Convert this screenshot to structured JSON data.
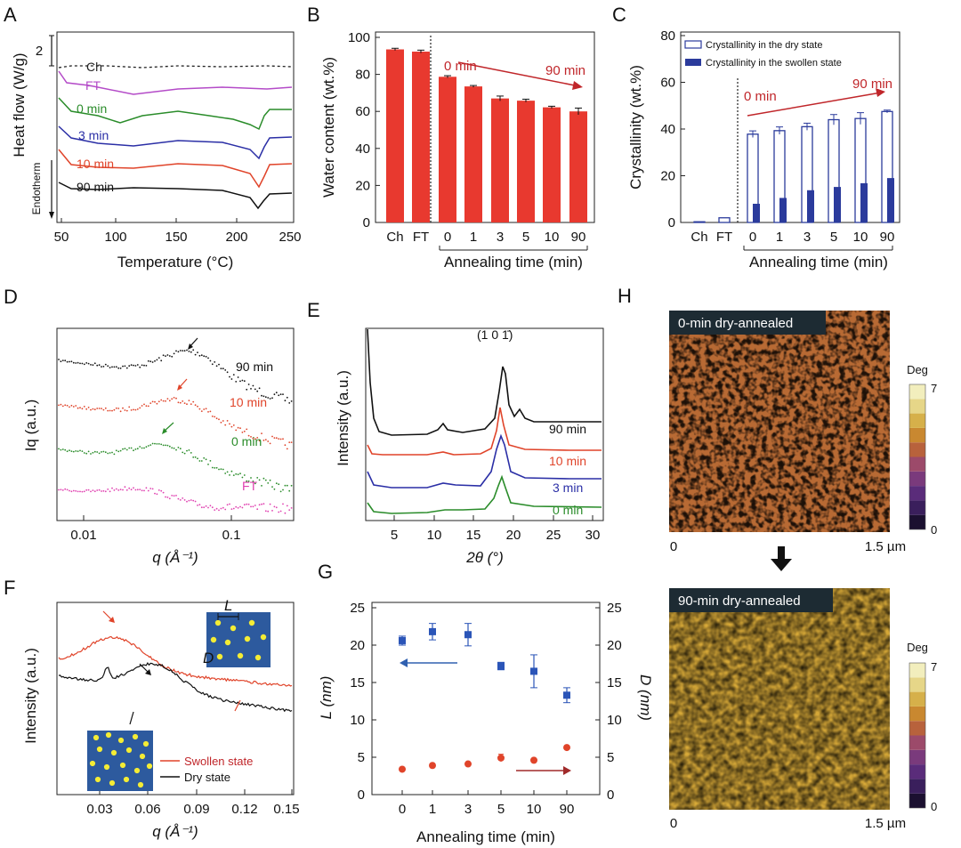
{
  "panels": {
    "A": "A",
    "B": "B",
    "C": "C",
    "D": "D",
    "E": "E",
    "F": "F",
    "G": "G",
    "H": "H"
  },
  "chart_data": [
    {
      "id": "A",
      "type": "line",
      "xlabel": "Temperature (°C)",
      "ylabel": "Heat flow (W/g)",
      "endotherm_label": "Endotherm",
      "scale_bar_label": "2",
      "xticks": [
        "50",
        "100",
        "150",
        "200",
        "250"
      ],
      "xlim": [
        50,
        250
      ],
      "series": [
        {
          "name": "Ch",
          "color": "#222222",
          "style": "dashed"
        },
        {
          "name": "FT",
          "color": "#b44bc8"
        },
        {
          "name": "0 min",
          "color": "#2a8c2a"
        },
        {
          "name": "3 min",
          "color": "#2b2fa6"
        },
        {
          "name": "10 min",
          "color": "#e0442a"
        },
        {
          "name": "90 min",
          "color": "#111111"
        }
      ]
    },
    {
      "id": "B",
      "type": "bar",
      "ylabel": "Water content (wt.%)",
      "xlabel": "Annealing time (min)",
      "categories": [
        "Ch",
        "FT",
        "0",
        "1",
        "3",
        "5",
        "10",
        "90"
      ],
      "values": [
        93.5,
        92.3,
        78.7,
        73.5,
        67,
        65.8,
        62.2,
        60
      ],
      "errors": [
        0.6,
        0.8,
        0.6,
        0.5,
        1.3,
        0.8,
        0.6,
        1.8
      ],
      "ylim": [
        0,
        100
      ],
      "yticks": [
        "0",
        "20",
        "40",
        "60",
        "80",
        "100"
      ],
      "bar_color": "#e8392f",
      "arrow_start_label": "0 min",
      "arrow_end_label": "90 min"
    },
    {
      "id": "C",
      "type": "bar",
      "ylabel": "Crystallinity (wt.%)",
      "xlabel": "Annealing time (min)",
      "categories": [
        "Ch",
        "FT",
        "0",
        "1",
        "3",
        "5",
        "10",
        "90"
      ],
      "ylim": [
        0,
        80
      ],
      "yticks": [
        "0",
        "20",
        "40",
        "60",
        "80"
      ],
      "series": [
        {
          "name": "Crystallinity in the dry state",
          "values": [
            0.3,
            2.0,
            37.8,
            39.3,
            41,
            44,
            44.5,
            47.5
          ],
          "errors": [
            0,
            0,
            1.4,
            1.6,
            1.5,
            2.2,
            2.5,
            0.6
          ],
          "color": "#ffffff",
          "stroke": "#2b3b9c"
        },
        {
          "name": "Crystallinity in the swollen state",
          "values": [
            0,
            0,
            8,
            10.5,
            13.8,
            15.2,
            16.8,
            19
          ],
          "errors": [
            0,
            0,
            0.3,
            0.4,
            0.4,
            0.6,
            0.6,
            0.3
          ],
          "color": "#2b3b9c"
        }
      ],
      "arrow_start_label": "0 min",
      "arrow_end_label": "90 min"
    },
    {
      "id": "D",
      "type": "scatter",
      "xlabel": "q (Å⁻¹)",
      "ylabel": "Iq (a.u.)",
      "xscale": "log",
      "xticks": [
        "0.01",
        "0.1"
      ],
      "series": [
        {
          "name": "90 min",
          "color": "#111111"
        },
        {
          "name": "10 min",
          "color": "#e0442a"
        },
        {
          "name": "0 min",
          "color": "#2a8c2a"
        },
        {
          "name": "FT",
          "color": "#e040b0"
        }
      ]
    },
    {
      "id": "E",
      "type": "line",
      "xlabel": "2θ (°)",
      "ylabel": "Intensity (a.u.)",
      "xticks": [
        "5",
        "10",
        "15",
        "20",
        "25",
        "30"
      ],
      "xlim": [
        1,
        32
      ],
      "peak_label": "(1 0 1̄)",
      "series": [
        {
          "name": "90 min",
          "color": "#111111"
        },
        {
          "name": "10 min",
          "color": "#e0442a"
        },
        {
          "name": "3 min",
          "color": "#2b2fa6"
        },
        {
          "name": "0 min",
          "color": "#2a8c2a"
        }
      ]
    },
    {
      "id": "F",
      "type": "line",
      "xlabel": "q (Å⁻¹)",
      "ylabel": "Intensity (a.u.)",
      "xticks": [
        "0.03",
        "0.06",
        "0.09",
        "0.12",
        "0.15"
      ],
      "xlim": [
        0.01,
        0.15
      ],
      "inset_L": "L",
      "inset_D": "D",
      "series": [
        {
          "name": "Swollen state",
          "color": "#e0442a"
        },
        {
          "name": "Dry state",
          "color": "#111111"
        }
      ]
    },
    {
      "id": "G",
      "type": "scatter",
      "xlabel": "Annealing time (min)",
      "ylabel_left": "L (nm)",
      "ylabel_right": "D (nm)",
      "categories": [
        "0",
        "1",
        "3",
        "5",
        "10",
        "90"
      ],
      "ylim": [
        0,
        25
      ],
      "yticks": [
        "0",
        "5",
        "10",
        "15",
        "20",
        "25"
      ],
      "series": [
        {
          "name": "L",
          "values": [
            20.6,
            21.8,
            21.4,
            17.2,
            16.5,
            13.3
          ],
          "errors": [
            0.6,
            1.1,
            1.5,
            0.5,
            2.2,
            1.0
          ],
          "color": "#2b55b8",
          "marker": "square",
          "axis": "left"
        },
        {
          "name": "D",
          "values": [
            3.4,
            3.9,
            4.1,
            4.9,
            4.6,
            6.3
          ],
          "errors": [
            0,
            0,
            0,
            0.5,
            0,
            0
          ],
          "color": "#e0442a",
          "marker": "circle",
          "axis": "right"
        }
      ]
    }
  ],
  "afm": [
    {
      "caption": "0-min dry-annealed",
      "scale_label": "Deg",
      "cb_max": "7",
      "cb_min": "0",
      "x0": "0",
      "x1": "1.5 µm"
    },
    {
      "caption": "90-min dry-annealed",
      "scale_label": "Deg",
      "cb_max": "7",
      "cb_min": "0",
      "x0": "0",
      "x1": "1.5 µm"
    }
  ],
  "colorbar": [
    "#1b1030",
    "#3a1f5c",
    "#5a2c7a",
    "#7a3a7c",
    "#9c4a6a",
    "#b8623c",
    "#c98830",
    "#d6b04a",
    "#e6d688",
    "#f2eebd"
  ]
}
